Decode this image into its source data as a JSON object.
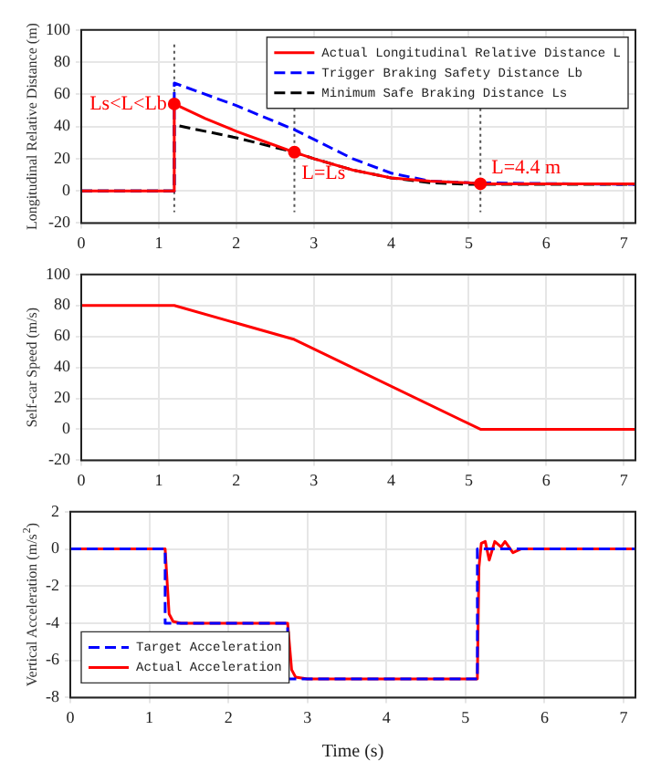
{
  "chart_data": [
    {
      "type": "line",
      "ylabel": "Longitudinal Relative Distance (m)",
      "xlim": [
        0,
        7.15
      ],
      "xticks": [
        0,
        1,
        2,
        3,
        4,
        5,
        6,
        7
      ],
      "ylim": [
        -20,
        100
      ],
      "yticks": [
        -20,
        0,
        20,
        40,
        60,
        80,
        100
      ],
      "grid": true,
      "legend": "top right",
      "series": [
        {
          "name": "Actual Longitudinal Relative Distance L",
          "color": "#ff0000",
          "line_style": "solid",
          "x": [
            0,
            1.2,
            1.2,
            1.6,
            2.0,
            2.4,
            2.75,
            3.0,
            3.5,
            4.0,
            4.5,
            5.0,
            5.15,
            7.15
          ],
          "values": [
            0,
            0,
            54,
            45,
            37,
            30,
            24,
            20,
            13,
            8,
            6,
            5,
            4.4,
            4.4
          ]
        },
        {
          "name": "Trigger Braking Safety Distance Lb",
          "color": "#0000ff",
          "line_style": "dashed",
          "x": [
            0,
            1.2,
            1.2,
            2.0,
            2.75,
            3.0,
            3.5,
            4.0,
            4.5,
            5.0,
            7.15
          ],
          "values": [
            0,
            0,
            67,
            53,
            38,
            32,
            20,
            11,
            6,
            5,
            4
          ]
        },
        {
          "name": "Minimum Safe Braking Distance Ls",
          "color": "#000000",
          "line_style": "dashed",
          "x": [
            0,
            1.2,
            1.2,
            2.0,
            2.75,
            3.0,
            3.5,
            4.0,
            4.5,
            5.0,
            7.15
          ],
          "values": [
            0,
            0,
            41,
            33,
            24,
            20,
            13,
            8,
            5,
            4,
            4
          ]
        },
        {
          "type": "scatter",
          "color": "#ff0000",
          "marker": "circle",
          "x": [
            1.2,
            2.75,
            5.15
          ],
          "values": [
            54,
            24,
            4.4
          ]
        }
      ],
      "ref_lines": [
        {
          "axis": "x",
          "value": 1.2,
          "color": "#555555",
          "line_style": "dotted"
        },
        {
          "axis": "x",
          "value": 2.75,
          "color": "#555555",
          "line_style": "dotted"
        },
        {
          "axis": "x",
          "value": 5.15,
          "color": "#555555",
          "line_style": "dotted"
        }
      ],
      "annotations": [
        {
          "text": "Ls<L<Lb",
          "x": 1.2,
          "y": 54
        },
        {
          "text": "L=Ls",
          "x": 2.75,
          "y": 24
        },
        {
          "text": "L=4.4 m",
          "x": 5.15,
          "y": 4.4
        }
      ]
    },
    {
      "type": "line",
      "ylabel": "Self-car Speed (m/s)",
      "xlim": [
        0,
        7.15
      ],
      "xticks": [
        0,
        1,
        2,
        3,
        4,
        5,
        6,
        7
      ],
      "ylim": [
        -20,
        100
      ],
      "yticks": [
        -20,
        0,
        20,
        40,
        60,
        80,
        100
      ],
      "grid": true,
      "series": [
        {
          "color": "#ff0000",
          "line_style": "solid",
          "x": [
            0,
            1.2,
            2.75,
            5.15,
            7.15
          ],
          "values": [
            80,
            80,
            58,
            0,
            0
          ]
        }
      ]
    },
    {
      "type": "line",
      "ylabel": "Vertical Acceleration (m/s$^{2}$)",
      "xlabel": "Time (s)",
      "xlim": [
        0,
        7.15
      ],
      "xticks": [
        0,
        1,
        2,
        3,
        4,
        5,
        6,
        7
      ],
      "ylim": [
        -8,
        2
      ],
      "yticks": [
        -8,
        -6,
        -4,
        -2,
        0,
        2
      ],
      "grid": true,
      "legend": "bottom left",
      "series": [
        {
          "name": "Target Acceleration",
          "color": "#0000ff",
          "line_style": "dashed",
          "x": [
            0,
            1.2,
            1.2,
            2.75,
            2.75,
            5.15,
            5.15,
            7.15
          ],
          "values": [
            0,
            0,
            -4,
            -4,
            -7,
            -7,
            0,
            0
          ]
        },
        {
          "name": "Actual Acceleration",
          "color": "#ff0000",
          "line_style": "solid",
          "x": [
            0,
            1.2,
            1.25,
            1.3,
            1.4,
            2.75,
            2.8,
            2.85,
            3.0,
            5.15,
            5.17,
            5.2,
            5.25,
            5.3,
            5.37,
            5.45,
            5.5,
            5.6,
            5.7,
            7.15
          ],
          "values": [
            0,
            0,
            -3.5,
            -3.9,
            -4,
            -4,
            -6.5,
            -6.9,
            -7,
            -7,
            -1,
            0.3,
            0.4,
            -0.6,
            0.4,
            0.1,
            0.4,
            -0.2,
            0,
            0
          ]
        }
      ]
    }
  ]
}
